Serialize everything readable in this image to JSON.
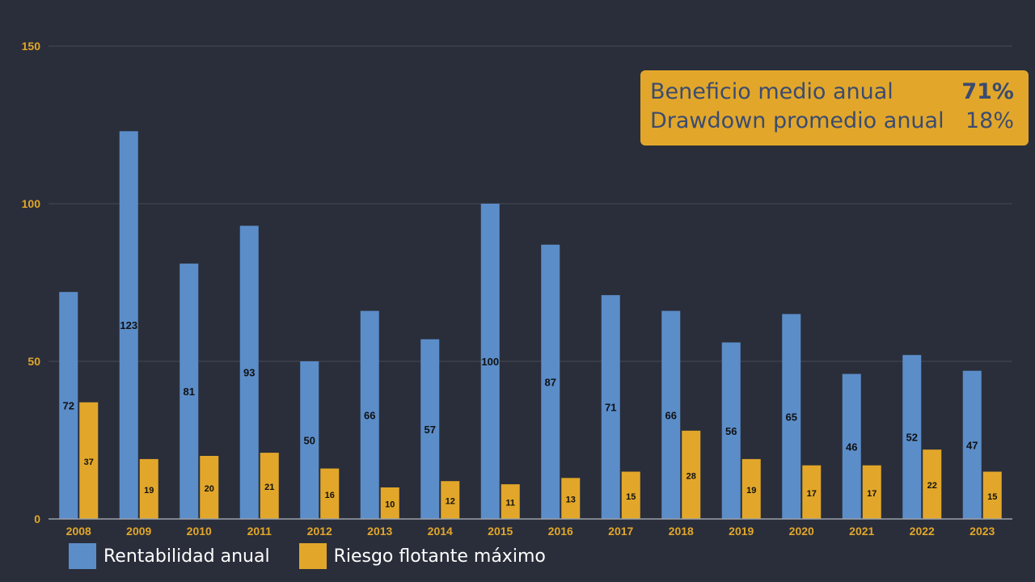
{
  "summary": {
    "rows": [
      {
        "label": "Beneficio medio anual",
        "value": "71%"
      },
      {
        "label": "Drawdown promedio anual",
        "value": "18%"
      }
    ]
  },
  "colors": {
    "background": "#2a2e3a",
    "series_blue": "#5b8dc9",
    "series_orange": "#e2a72a",
    "grid": "#454a58",
    "axis_text": "#e2a72a",
    "value_label": "#111111"
  },
  "chart_data": {
    "type": "bar",
    "categories": [
      "2008",
      "2009",
      "2010",
      "2011",
      "2012",
      "2013",
      "2014",
      "2015",
      "2016",
      "2017",
      "2018",
      "2019",
      "2020",
      "2021",
      "2022",
      "2023"
    ],
    "series": [
      {
        "name": "Rentabilidad anual",
        "values": [
          72,
          123,
          81,
          93,
          50,
          66,
          57,
          100,
          87,
          71,
          66,
          56,
          65,
          46,
          52,
          47
        ]
      },
      {
        "name": "Riesgo flotante máximo",
        "values": [
          37,
          19,
          20,
          21,
          16,
          10,
          12,
          11,
          13,
          15,
          28,
          19,
          17,
          17,
          22,
          15
        ]
      }
    ],
    "ylim": [
      0,
      150
    ],
    "yticks": [
      0,
      50,
      100,
      150
    ],
    "grid": true,
    "legend_position": "bottom-left"
  }
}
